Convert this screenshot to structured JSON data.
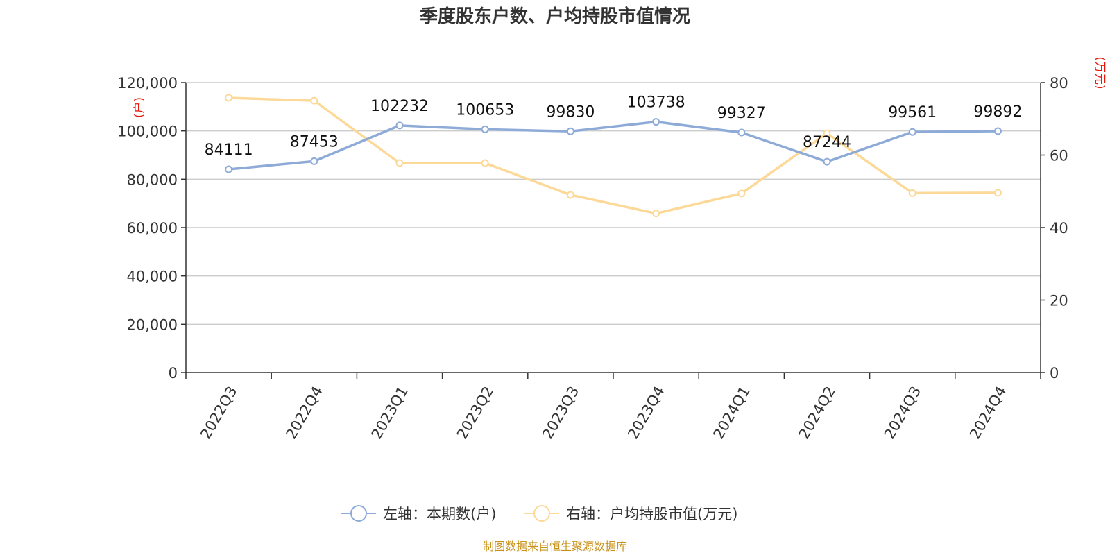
{
  "colors": {
    "series_left": "#8eabd8",
    "series_right": "#fcd999",
    "grid": "#cccccc",
    "axis": "#333333",
    "unit_label": "#e8170c",
    "source_text": "#c8921a"
  },
  "chart_data": {
    "type": "line",
    "title": "季度股东户数、户均持股市值情况",
    "categories": [
      "2022Q3",
      "2022Q4",
      "2023Q1",
      "2023Q2",
      "2023Q3",
      "2023Q4",
      "2024Q1",
      "2024Q2",
      "2024Q3",
      "2024Q4"
    ],
    "y_left": {
      "unit": "(户)",
      "ylim": [
        0,
        120000
      ],
      "ticks": [
        0,
        20000,
        40000,
        60000,
        80000,
        100000,
        120000
      ],
      "tick_labels": [
        "0",
        "20,000",
        "40,000",
        "60,000",
        "80,000",
        "100,000",
        "120,000"
      ]
    },
    "y_right": {
      "unit": "(万元)",
      "ylim": [
        0,
        80
      ],
      "ticks": [
        0,
        20,
        40,
        60,
        80
      ],
      "tick_labels": [
        "0",
        "20",
        "40",
        "60",
        "80"
      ]
    },
    "grid": true,
    "legend_position": "bottom",
    "series": [
      {
        "name": "左轴：本期数(户)",
        "axis": "left",
        "values": [
          84111,
          87453,
          102232,
          100653,
          99830,
          103738,
          99327,
          87244,
          99561,
          99892
        ],
        "data_labels": [
          "84111",
          "87453",
          "102232",
          "100653",
          "99830",
          "103738",
          "99327",
          "87244",
          "99561",
          "99892"
        ]
      },
      {
        "name": "右轴：户均持股市值(万元)",
        "axis": "right",
        "values": [
          75.8,
          75.0,
          57.8,
          57.8,
          49.0,
          43.9,
          49.4,
          66.0,
          49.5,
          49.6
        ]
      }
    ],
    "source": "制图数据来自恒生聚源数据库"
  }
}
